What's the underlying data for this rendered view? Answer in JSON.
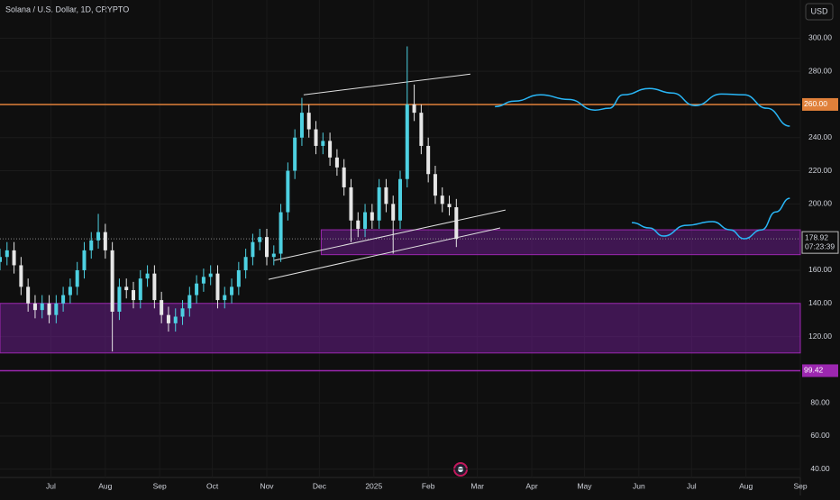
{
  "chart_data": {
    "type": "candlestick",
    "title": "Solana / U.S. Dollar, 1D, CRYPTO",
    "currency": "USD",
    "x": [
      "2024-06-02",
      "2024-06-06",
      "2024-06-10",
      "2024-06-14",
      "2024-06-18",
      "2024-06-22",
      "2024-06-26",
      "2024-06-30",
      "2024-07-04",
      "2024-07-08",
      "2024-07-12",
      "2024-07-16",
      "2024-07-20",
      "2024-07-24",
      "2024-07-28",
      "2024-08-01",
      "2024-08-05",
      "2024-08-09",
      "2024-08-13",
      "2024-08-17",
      "2024-08-21",
      "2024-08-25",
      "2024-08-29",
      "2024-09-02",
      "2024-09-06",
      "2024-09-10",
      "2024-09-14",
      "2024-09-18",
      "2024-09-22",
      "2024-09-26",
      "2024-09-30",
      "2024-10-04",
      "2024-10-08",
      "2024-10-12",
      "2024-10-16",
      "2024-10-20",
      "2024-10-24",
      "2024-10-28",
      "2024-11-01",
      "2024-11-05",
      "2024-11-09",
      "2024-11-13",
      "2024-11-17",
      "2024-11-21",
      "2024-11-25",
      "2024-11-29",
      "2024-12-03",
      "2024-12-07",
      "2024-12-11",
      "2024-12-15",
      "2024-12-19",
      "2024-12-23",
      "2024-12-27",
      "2024-12-31",
      "2025-01-04",
      "2025-01-08",
      "2025-01-12",
      "2025-01-16",
      "2025-01-20",
      "2025-01-24",
      "2025-01-28",
      "2025-02-01",
      "2025-02-05",
      "2025-02-09",
      "2025-02-13",
      "2025-02-17"
    ],
    "open": [
      165,
      168,
      172,
      163,
      150,
      140,
      136,
      140,
      133,
      140,
      145,
      150,
      160,
      172,
      178,
      183,
      172,
      135,
      150,
      148,
      142,
      155,
      158,
      142,
      133,
      128,
      132,
      137,
      145,
      152,
      156,
      158,
      142,
      145,
      150,
      160,
      168,
      177,
      180,
      168,
      170,
      195,
      220,
      240,
      255,
      245,
      235,
      238,
      228,
      222,
      210,
      190,
      185,
      195,
      190,
      210,
      200,
      190,
      215,
      260,
      255,
      235,
      218,
      205,
      200,
      198
    ],
    "high": [
      173,
      177,
      177,
      168,
      155,
      145,
      145,
      145,
      145,
      150,
      155,
      165,
      177,
      183,
      194,
      188,
      177,
      155,
      155,
      153,
      160,
      163,
      163,
      147,
      138,
      137,
      142,
      150,
      157,
      161,
      163,
      163,
      150,
      155,
      165,
      173,
      182,
      185,
      185,
      175,
      200,
      225,
      245,
      264,
      260,
      250,
      243,
      243,
      233,
      227,
      215,
      195,
      200,
      200,
      215,
      215,
      205,
      220,
      295,
      272,
      260,
      240,
      223,
      210,
      205,
      203
    ],
    "low": [
      160,
      163,
      158,
      145,
      135,
      131,
      131,
      128,
      128,
      135,
      140,
      145,
      155,
      167,
      173,
      167,
      111,
      130,
      143,
      137,
      137,
      150,
      137,
      128,
      123,
      123,
      127,
      132,
      140,
      147,
      151,
      137,
      137,
      140,
      145,
      155,
      163,
      172,
      163,
      163,
      165,
      190,
      215,
      235,
      240,
      230,
      230,
      223,
      217,
      205,
      177,
      180,
      180,
      185,
      185,
      195,
      170,
      185,
      210,
      250,
      230,
      213,
      200,
      195,
      193,
      174
    ],
    "close": [
      168,
      172,
      163,
      150,
      140,
      136,
      140,
      133,
      140,
      145,
      150,
      160,
      172,
      178,
      183,
      172,
      135,
      150,
      148,
      142,
      155,
      158,
      142,
      133,
      128,
      132,
      137,
      145,
      152,
      156,
      158,
      142,
      145,
      150,
      160,
      168,
      177,
      180,
      168,
      170,
      195,
      220,
      240,
      255,
      245,
      235,
      238,
      228,
      222,
      210,
      190,
      185,
      195,
      190,
      210,
      200,
      190,
      215,
      260,
      255,
      235,
      218,
      205,
      200,
      198,
      179
    ],
    "up_color": "#4dd0e1",
    "down_color": "#e6e6e6",
    "xlim": [
      "2024-06-02",
      "2025-09-01"
    ],
    "xticks": [
      {
        "value": "2024-07-01",
        "label": "Jul"
      },
      {
        "value": "2024-08-01",
        "label": "Aug"
      },
      {
        "value": "2024-09-01",
        "label": "Sep"
      },
      {
        "value": "2024-10-01",
        "label": "Oct"
      },
      {
        "value": "2024-11-01",
        "label": "Nov"
      },
      {
        "value": "2024-12-01",
        "label": "Dec"
      },
      {
        "value": "2025-01-01",
        "label": "2025"
      },
      {
        "value": "2025-02-01",
        "label": "Feb"
      },
      {
        "value": "2025-03-01",
        "label": "Mar"
      },
      {
        "value": "2025-04-01",
        "label": "Apr"
      },
      {
        "value": "2025-05-01",
        "label": "May"
      },
      {
        "value": "2025-06-01",
        "label": "Jun"
      },
      {
        "value": "2025-07-01",
        "label": "Jul"
      },
      {
        "value": "2025-08-01",
        "label": "Aug"
      },
      {
        "value": "2025-09-01",
        "label": "Sep"
      }
    ],
    "ylim": [
      35,
      323
    ],
    "yticks": [
      {
        "value": 300,
        "label": "300.00"
      },
      {
        "value": 280,
        "label": "280.00"
      },
      {
        "value": 240,
        "label": "240.00"
      },
      {
        "value": 220,
        "label": "220.00"
      },
      {
        "value": 200,
        "label": "200.00"
      },
      {
        "value": 160,
        "label": "160.00"
      },
      {
        "value": 140,
        "label": "140.00"
      },
      {
        "value": 120,
        "label": "120.00"
      },
      {
        "value": 80,
        "label": "80.00"
      },
      {
        "value": 60,
        "label": "60.00"
      },
      {
        "value": 40,
        "label": "40.00"
      }
    ],
    "grid": true,
    "last_price": 178.92,
    "countdown": "07:23:39",
    "levels": [
      {
        "value": 260,
        "label": "260.00",
        "color": "#e0803a"
      },
      {
        "value": 99.42,
        "color": "#9c27b0"
      }
    ],
    "zones": [
      {
        "start": "2024-12-02",
        "top": 184.4,
        "bottom": 169.4
      },
      {
        "start": "2024-06-02",
        "top": 140,
        "bottom": 110.1
      }
    ],
    "trendlines": [
      {
        "x": [
          "2024-11-22",
          "2025-02-25"
        ],
        "values": [
          265.8,
          278.3
        ]
      },
      {
        "x": [
          "2024-11-05",
          "2025-03-17"
        ],
        "values": [
          165.9,
          196.3
        ]
      },
      {
        "x": [
          "2024-11-02",
          "2025-03-14"
        ],
        "values": [
          154.5,
          185.5
        ]
      }
    ],
    "projections": [
      {
        "color": "#29b6f6",
        "x": [
          "2025-03-11",
          "2025-03-22",
          "2025-04-06",
          "2025-04-22",
          "2025-05-07",
          "2025-05-15",
          "2025-05-23",
          "2025-06-07",
          "2025-06-20",
          "2025-07-03",
          "2025-07-18",
          "2025-07-31",
          "2025-08-13",
          "2025-08-26"
        ],
        "values": [
          258.7,
          262,
          265.8,
          263,
          256.6,
          257.7,
          265.8,
          269.6,
          266.9,
          259.3,
          266.3,
          265.8,
          257.7,
          246.9
        ]
      },
      {
        "color": "#29b6f6",
        "x": [
          "2025-05-28",
          "2025-06-07",
          "2025-06-15",
          "2025-06-28",
          "2025-07-13",
          "2025-07-23",
          "2025-07-31",
          "2025-08-10",
          "2025-08-18",
          "2025-08-26"
        ],
        "values": [
          188.7,
          185.5,
          180.6,
          187.1,
          189.3,
          184.4,
          179,
          184.4,
          195.2,
          203.4
        ]
      }
    ]
  }
}
